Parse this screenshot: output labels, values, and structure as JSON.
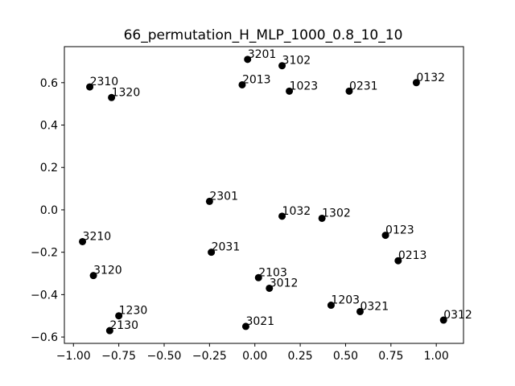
{
  "chart_data": {
    "type": "scatter",
    "title": "66_permutation_H_MLP_1000_0.8_10_10",
    "xlabel": "",
    "ylabel": "",
    "xlim": [
      -1.05,
      1.15
    ],
    "ylim": [
      -0.63,
      0.77
    ],
    "xticks": [
      -1.0,
      -0.75,
      -0.5,
      -0.25,
      0.0,
      0.25,
      0.5,
      0.75,
      1.0
    ],
    "xtick_labels": [
      "−1.00",
      "−0.75",
      "−0.50",
      "−0.25",
      "0.00",
      "0.25",
      "0.50",
      "0.75",
      "1.00"
    ],
    "yticks": [
      -0.6,
      -0.4,
      -0.2,
      0.0,
      0.2,
      0.4,
      0.6
    ],
    "ytick_labels": [
      "−0.6",
      "−0.4",
      "−0.2",
      "0.0",
      "0.2",
      "0.4",
      "0.6"
    ],
    "grid": false,
    "marker_color": "#000000",
    "points": [
      {
        "label": "3201",
        "x": -0.04,
        "y": 0.71
      },
      {
        "label": "3102",
        "x": 0.15,
        "y": 0.68
      },
      {
        "label": "2310",
        "x": -0.91,
        "y": 0.58
      },
      {
        "label": "1320",
        "x": -0.79,
        "y": 0.53
      },
      {
        "label": "2013",
        "x": -0.07,
        "y": 0.59
      },
      {
        "label": "1023",
        "x": 0.19,
        "y": 0.56
      },
      {
        "label": "0231",
        "x": 0.52,
        "y": 0.56
      },
      {
        "label": "0132",
        "x": 0.89,
        "y": 0.6
      },
      {
        "label": "2301",
        "x": -0.25,
        "y": 0.04
      },
      {
        "label": "1032",
        "x": 0.15,
        "y": -0.03
      },
      {
        "label": "1302",
        "x": 0.37,
        "y": -0.04
      },
      {
        "label": "0123",
        "x": 0.72,
        "y": -0.12
      },
      {
        "label": "3210",
        "x": -0.95,
        "y": -0.15
      },
      {
        "label": "2031",
        "x": -0.24,
        "y": -0.2
      },
      {
        "label": "0213",
        "x": 0.79,
        "y": -0.24
      },
      {
        "label": "3120",
        "x": -0.89,
        "y": -0.31
      },
      {
        "label": "2103",
        "x": 0.02,
        "y": -0.32
      },
      {
        "label": "3012",
        "x": 0.08,
        "y": -0.37
      },
      {
        "label": "1203",
        "x": 0.42,
        "y": -0.45
      },
      {
        "label": "0321",
        "x": 0.58,
        "y": -0.48
      },
      {
        "label": "1230",
        "x": -0.75,
        "y": -0.5
      },
      {
        "label": "0312",
        "x": 1.04,
        "y": -0.52
      },
      {
        "label": "2130",
        "x": -0.8,
        "y": -0.57
      },
      {
        "label": "3021",
        "x": -0.05,
        "y": -0.55
      }
    ]
  }
}
